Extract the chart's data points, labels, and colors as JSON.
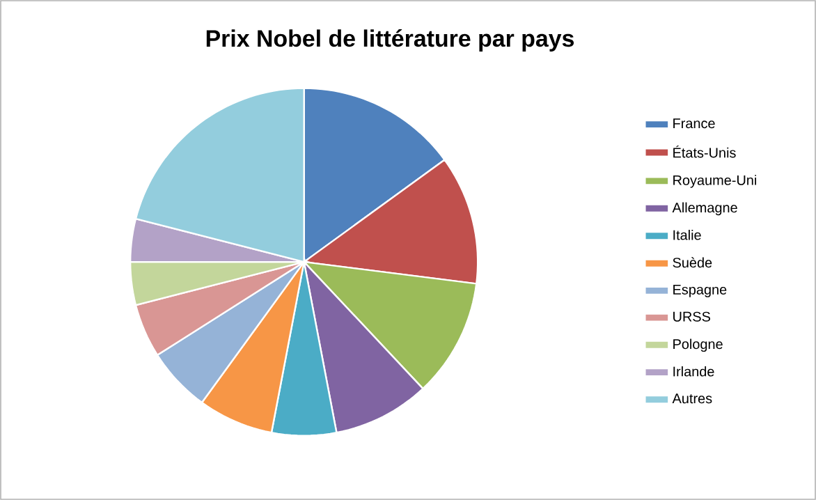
{
  "chart_data": {
    "type": "pie",
    "title": "Prix Nobel de littérature par pays",
    "categories": [
      "France",
      "États-Unis",
      "Royaume-Uni",
      "Allemagne",
      "Italie",
      "Suède",
      "Espagne",
      "URSS",
      "Pologne",
      "Irlande",
      "Autres"
    ],
    "values": [
      15,
      12,
      11,
      9,
      6,
      7,
      6,
      5,
      4,
      4,
      21
    ],
    "colors": [
      "#4f81bd",
      "#c0504d",
      "#9bbb59",
      "#8064a2",
      "#4bacc6",
      "#f79646",
      "#95b3d7",
      "#d99694",
      "#c3d69b",
      "#b3a2c7",
      "#93cddd"
    ],
    "legend": "right"
  }
}
